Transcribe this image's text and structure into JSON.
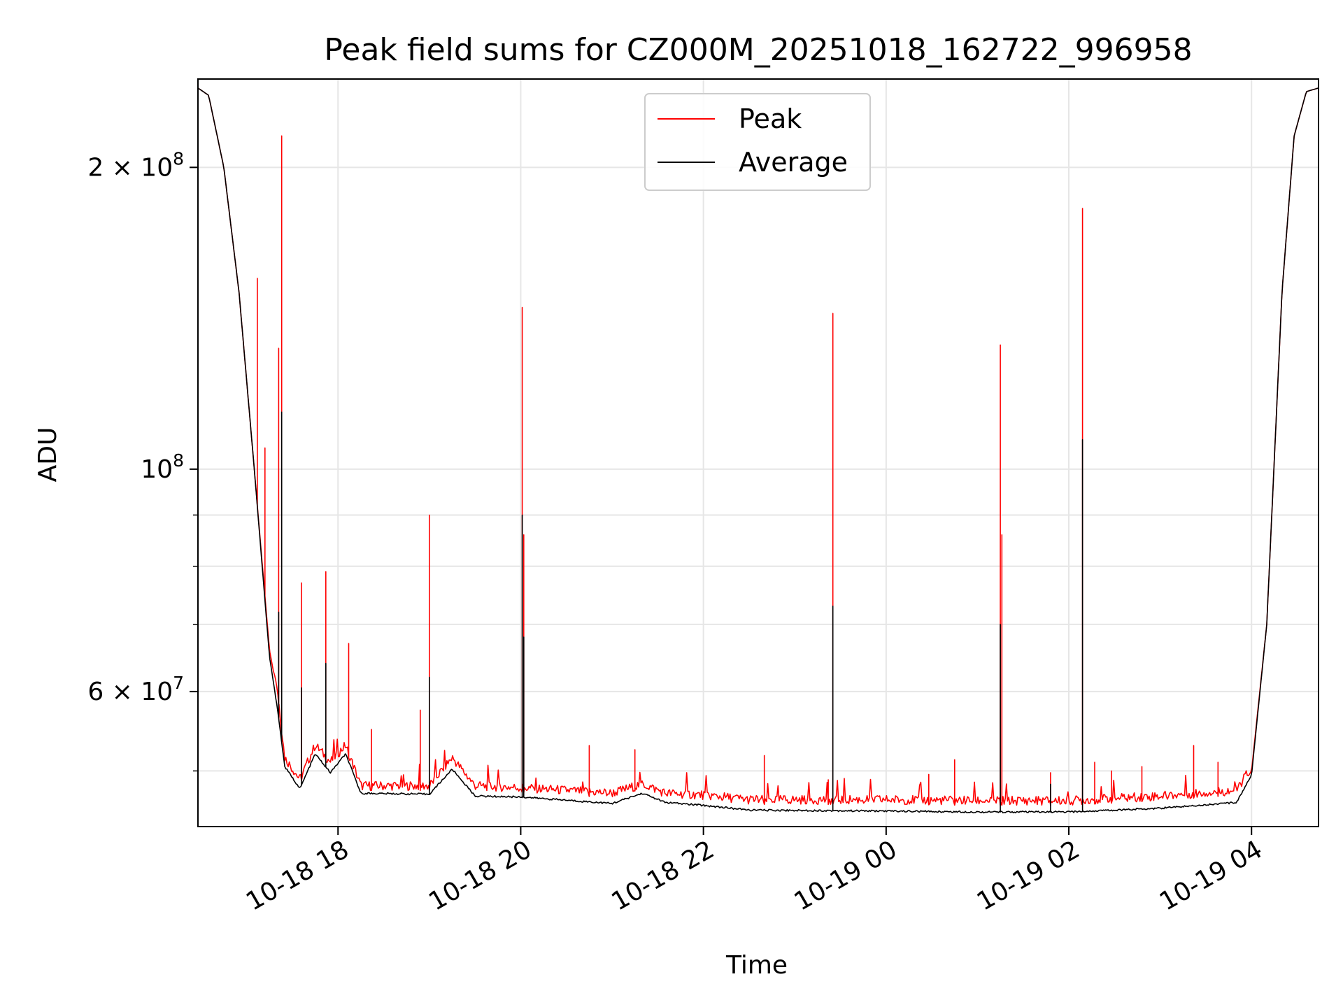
{
  "chart_data": {
    "type": "line",
    "title": "Peak field sums for CZ000M_20251018_162722_996958",
    "xlabel": "Time",
    "ylabel": "ADU",
    "y_scale": "log",
    "ylim": [
      44000000,
      245000000
    ],
    "xlim": [
      "2025-10-18 16:28",
      "2025-10-19 04:44"
    ],
    "grid": true,
    "legend_position": "top-center",
    "x_ticks": [
      {
        "value": "2025-10-18 18:00",
        "label": "10-18 18"
      },
      {
        "value": "2025-10-18 20:00",
        "label": "10-18 20"
      },
      {
        "value": "2025-10-18 22:00",
        "label": "10-18 22"
      },
      {
        "value": "2025-10-19 00:00",
        "label": "10-19 00"
      },
      {
        "value": "2025-10-19 02:00",
        "label": "10-19 02"
      },
      {
        "value": "2025-10-19 04:00",
        "label": "10-19 04"
      }
    ],
    "y_ticks": [
      {
        "value": 200000000,
        "mantissa": "2",
        "exponent": "8"
      },
      {
        "value": 100000000,
        "mantissa": "",
        "exponent": "8"
      },
      {
        "value": 60000000,
        "mantissa": "6",
        "exponent": "7"
      }
    ],
    "y_minor_grid": [
      50000000,
      70000000,
      80000000,
      90000000
    ],
    "series": [
      {
        "name": "Peak",
        "color": "#ff0000",
        "baseline": [
          {
            "t": "2025-10-18 16:28",
            "v": 240000000
          },
          {
            "t": "2025-10-18 16:35",
            "v": 236000000
          },
          {
            "t": "2025-10-18 16:45",
            "v": 200000000
          },
          {
            "t": "2025-10-18 16:55",
            "v": 150000000
          },
          {
            "t": "2025-10-18 17:05",
            "v": 100000000
          },
          {
            "t": "2025-10-18 17:15",
            "v": 66000000
          },
          {
            "t": "2025-10-18 17:20",
            "v": 60000000
          },
          {
            "t": "2025-10-18 17:25",
            "v": 51000000
          },
          {
            "t": "2025-10-18 17:35",
            "v": 48500000
          },
          {
            "t": "2025-10-18 17:45",
            "v": 52500000
          },
          {
            "t": "2025-10-18 17:55",
            "v": 50500000
          },
          {
            "t": "2025-10-18 18:05",
            "v": 52500000
          },
          {
            "t": "2025-10-18 18:15",
            "v": 47800000
          },
          {
            "t": "2025-10-18 19:00",
            "v": 47800000
          },
          {
            "t": "2025-10-18 19:15",
            "v": 51000000
          },
          {
            "t": "2025-10-18 19:30",
            "v": 47800000
          },
          {
            "t": "2025-10-18 20:00",
            "v": 47600000
          },
          {
            "t": "2025-10-18 21:00",
            "v": 47000000
          },
          {
            "t": "2025-10-18 21:20",
            "v": 48000000
          },
          {
            "t": "2025-10-18 21:35",
            "v": 47000000
          },
          {
            "t": "2025-10-18 22:00",
            "v": 46800000
          },
          {
            "t": "2025-10-18 22:30",
            "v": 46300000
          },
          {
            "t": "2025-10-19 00:00",
            "v": 46300000
          },
          {
            "t": "2025-10-19 01:00",
            "v": 46200000
          },
          {
            "t": "2025-10-19 02:00",
            "v": 46200000
          },
          {
            "t": "2025-10-19 03:00",
            "v": 46700000
          },
          {
            "t": "2025-10-19 03:50",
            "v": 47300000
          },
          {
            "t": "2025-10-19 04:00",
            "v": 50000000
          },
          {
            "t": "2025-10-19 04:10",
            "v": 70000000
          },
          {
            "t": "2025-10-19 04:20",
            "v": 150000000
          },
          {
            "t": "2025-10-19 04:28",
            "v": 215000000
          },
          {
            "t": "2025-10-19 04:36",
            "v": 238000000
          },
          {
            "t": "2025-10-19 04:44",
            "v": 240000000
          }
        ],
        "spikes": [
          {
            "t": "2025-10-18 17:07",
            "v": 155000000
          },
          {
            "t": "2025-10-18 17:12",
            "v": 105000000
          },
          {
            "t": "2025-10-18 17:21",
            "v": 132000000
          },
          {
            "t": "2025-10-18 17:23",
            "v": 215000000
          },
          {
            "t": "2025-10-18 17:36",
            "v": 77000000
          },
          {
            "t": "2025-10-18 17:52",
            "v": 79000000
          },
          {
            "t": "2025-10-18 18:07",
            "v": 67000000
          },
          {
            "t": "2025-10-18 18:22",
            "v": 55000000
          },
          {
            "t": "2025-10-18 18:54",
            "v": 57500000
          },
          {
            "t": "2025-10-18 19:00",
            "v": 90000000
          },
          {
            "t": "2025-10-18 20:01",
            "v": 145000000
          },
          {
            "t": "2025-10-18 20:02",
            "v": 86000000
          },
          {
            "t": "2025-10-18 20:45",
            "v": 53000000
          },
          {
            "t": "2025-10-18 21:15",
            "v": 52500000
          },
          {
            "t": "2025-10-18 22:40",
            "v": 51800000
          },
          {
            "t": "2025-10-18 23:22",
            "v": 49000000
          },
          {
            "t": "2025-10-18 23:25",
            "v": 143000000
          },
          {
            "t": "2025-10-19 00:28",
            "v": 49600000
          },
          {
            "t": "2025-10-19 00:45",
            "v": 51300000
          },
          {
            "t": "2025-10-19 01:15",
            "v": 133000000
          },
          {
            "t": "2025-10-19 01:16",
            "v": 86000000
          },
          {
            "t": "2025-10-19 01:48",
            "v": 49800000
          },
          {
            "t": "2025-10-19 02:09",
            "v": 182000000
          },
          {
            "t": "2025-10-19 02:17",
            "v": 51000000
          },
          {
            "t": "2025-10-19 02:28",
            "v": 50000000
          },
          {
            "t": "2025-10-19 02:48",
            "v": 50500000
          },
          {
            "t": "2025-10-19 03:22",
            "v": 53000000
          },
          {
            "t": "2025-10-19 03:38",
            "v": 51000000
          }
        ]
      },
      {
        "name": "Average",
        "color": "#000000",
        "baseline": [
          {
            "t": "2025-10-18 16:28",
            "v": 240000000
          },
          {
            "t": "2025-10-18 16:35",
            "v": 236000000
          },
          {
            "t": "2025-10-18 16:45",
            "v": 200000000
          },
          {
            "t": "2025-10-18 16:55",
            "v": 150000000
          },
          {
            "t": "2025-10-18 17:05",
            "v": 100000000
          },
          {
            "t": "2025-10-18 17:15",
            "v": 65000000
          },
          {
            "t": "2025-10-18 17:20",
            "v": 58000000
          },
          {
            "t": "2025-10-18 17:25",
            "v": 50500000
          },
          {
            "t": "2025-10-18 17:35",
            "v": 48000000
          },
          {
            "t": "2025-10-18 17:45",
            "v": 52000000
          },
          {
            "t": "2025-10-18 17:55",
            "v": 49800000
          },
          {
            "t": "2025-10-18 18:05",
            "v": 52000000
          },
          {
            "t": "2025-10-18 18:15",
            "v": 47500000
          },
          {
            "t": "2025-10-18 19:00",
            "v": 47400000
          },
          {
            "t": "2025-10-18 19:15",
            "v": 50200000
          },
          {
            "t": "2025-10-18 19:30",
            "v": 47200000
          },
          {
            "t": "2025-10-18 20:00",
            "v": 47100000
          },
          {
            "t": "2025-10-18 21:00",
            "v": 46400000
          },
          {
            "t": "2025-10-18 21:20",
            "v": 47500000
          },
          {
            "t": "2025-10-18 21:35",
            "v": 46500000
          },
          {
            "t": "2025-10-18 22:00",
            "v": 46200000
          },
          {
            "t": "2025-10-18 22:30",
            "v": 45700000
          },
          {
            "t": "2025-10-19 00:00",
            "v": 45600000
          },
          {
            "t": "2025-10-19 01:00",
            "v": 45500000
          },
          {
            "t": "2025-10-19 02:00",
            "v": 45500000
          },
          {
            "t": "2025-10-19 03:00",
            "v": 45900000
          },
          {
            "t": "2025-10-19 03:50",
            "v": 46500000
          },
          {
            "t": "2025-10-19 04:00",
            "v": 49500000
          },
          {
            "t": "2025-10-19 04:10",
            "v": 70000000
          },
          {
            "t": "2025-10-19 04:20",
            "v": 150000000
          },
          {
            "t": "2025-10-19 04:28",
            "v": 215000000
          },
          {
            "t": "2025-10-19 04:36",
            "v": 238000000
          },
          {
            "t": "2025-10-19 04:44",
            "v": 240000000
          }
        ],
        "spikes": [
          {
            "t": "2025-10-18 17:21",
            "v": 72000000
          },
          {
            "t": "2025-10-18 17:23",
            "v": 114000000
          },
          {
            "t": "2025-10-18 17:36",
            "v": 60500000
          },
          {
            "t": "2025-10-18 17:52",
            "v": 64000000
          },
          {
            "t": "2025-10-18 19:00",
            "v": 62000000
          },
          {
            "t": "2025-10-18 20:01",
            "v": 90000000
          },
          {
            "t": "2025-10-18 20:02",
            "v": 68000000
          },
          {
            "t": "2025-10-18 23:25",
            "v": 73000000
          },
          {
            "t": "2025-10-19 01:15",
            "v": 70000000
          },
          {
            "t": "2025-10-19 02:09",
            "v": 107000000
          },
          {
            "t": "2025-10-19 01:48",
            "v": 48500000
          }
        ]
      }
    ]
  }
}
